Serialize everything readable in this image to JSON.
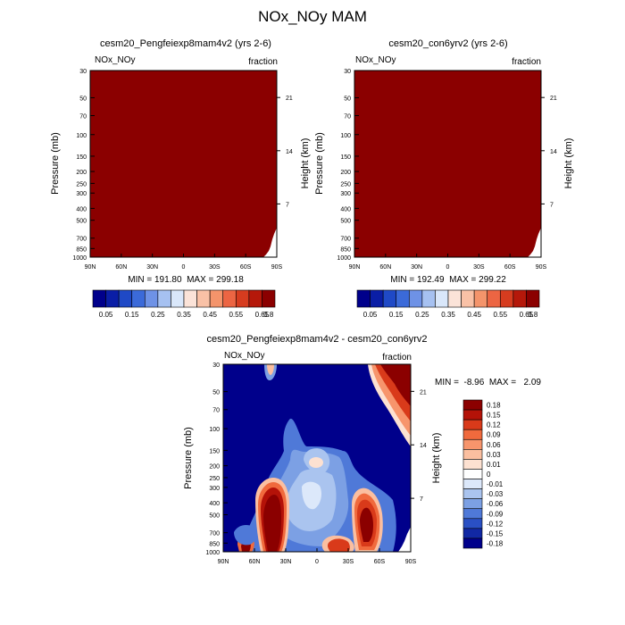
{
  "title": "NOx_NOy MAM",
  "chart_data": [
    {
      "type": "heatmap",
      "title": "cesm20_Pengfeiexp8mam4v2 (yrs 2-6)",
      "left_label": "NOx_NOy",
      "right_label": "fraction",
      "ylabel": "Pressure (mb)",
      "ylabel_right": "Height (km)",
      "x_ticks": [
        "90N",
        "60N",
        "30N",
        "0",
        "30S",
        "60S",
        "90S"
      ],
      "y_ticks": [
        30,
        50,
        70,
        100,
        150,
        200,
        250,
        300,
        400,
        500,
        700,
        850,
        1000
      ],
      "y_right_ticks": [
        21,
        14,
        7
      ],
      "y_scale": "log",
      "ylim": [
        1000,
        30
      ],
      "min": 191.8,
      "max": 299.18,
      "minmax_text": "MIN = 191.80  MAX = 299.18",
      "fill_color": "#8b0000",
      "colorbar_labels": [
        "0.05",
        "0.15",
        "0.25",
        "0.35",
        "0.45",
        "0.55",
        "0.65",
        "0.8"
      ]
    },
    {
      "type": "heatmap",
      "title": "cesm20_con6yrv2 (yrs 2-6)",
      "left_label": "NOx_NOy",
      "right_label": "fraction",
      "ylabel": "Pressure (mb)",
      "ylabel_right": "Height (km)",
      "x_ticks": [
        "90N",
        "60N",
        "30N",
        "0",
        "30S",
        "60S",
        "90S"
      ],
      "y_ticks": [
        30,
        50,
        70,
        100,
        150,
        200,
        250,
        300,
        400,
        500,
        700,
        850,
        1000
      ],
      "y_right_ticks": [
        21,
        14,
        7
      ],
      "y_scale": "log",
      "ylim": [
        1000,
        30
      ],
      "min": 192.49,
      "max": 299.22,
      "minmax_text": "MIN = 192.49  MAX = 299.22",
      "fill_color": "#8b0000",
      "colorbar_labels": [
        "0.05",
        "0.15",
        "0.25",
        "0.35",
        "0.45",
        "0.55",
        "0.65",
        "0.8"
      ]
    },
    {
      "type": "heatmap",
      "title": "cesm20_Pengfeiexp8mam4v2 - cesm20_con6yrv2",
      "left_label": "NOx_NOy",
      "right_label": "fraction",
      "ylabel": "Pressure (mb)",
      "ylabel_right": "Height (km)",
      "x_ticks": [
        "90N",
        "60N",
        "30N",
        "0",
        "30S",
        "60S",
        "90S"
      ],
      "y_ticks": [
        30,
        50,
        70,
        100,
        150,
        200,
        250,
        300,
        400,
        500,
        700,
        850,
        1000
      ],
      "y_right_ticks": [
        21,
        14,
        7
      ],
      "y_scale": "log",
      "ylim": [
        1000,
        30
      ],
      "min": -8.96,
      "max": 2.09,
      "minmax_text": "MIN =  -8.96  MAX =   2.09",
      "colorbar_labels": [
        "0.18",
        "0.15",
        "0.12",
        "0.09",
        "0.06",
        "0.03",
        "0.01",
        "0",
        "-0.01",
        "-0.03",
        "-0.06",
        "-0.09",
        "-0.12",
        "-0.15",
        "-0.18"
      ],
      "background_color": "#00008b"
    }
  ],
  "colors": {
    "seq_palette": [
      "#00008b",
      "#0a1ea6",
      "#1f49c6",
      "#3b6ad9",
      "#6e92e6",
      "#a6c1f1",
      "#d9e7fa",
      "#fbe3d8",
      "#f9c1a6",
      "#f4946b",
      "#ec6543",
      "#d63c1f",
      "#b5180a",
      "#8b0000"
    ],
    "div_palette": [
      "#8b0000",
      "#b41208",
      "#d93a1a",
      "#f06a3d",
      "#f7956c",
      "#fbbfa0",
      "#fde1d1",
      "#ffffff",
      "#dce8fa",
      "#aac4ef",
      "#7ca0e4",
      "#4f79d8",
      "#2a50c4",
      "#1128a4",
      "#00008b"
    ]
  }
}
